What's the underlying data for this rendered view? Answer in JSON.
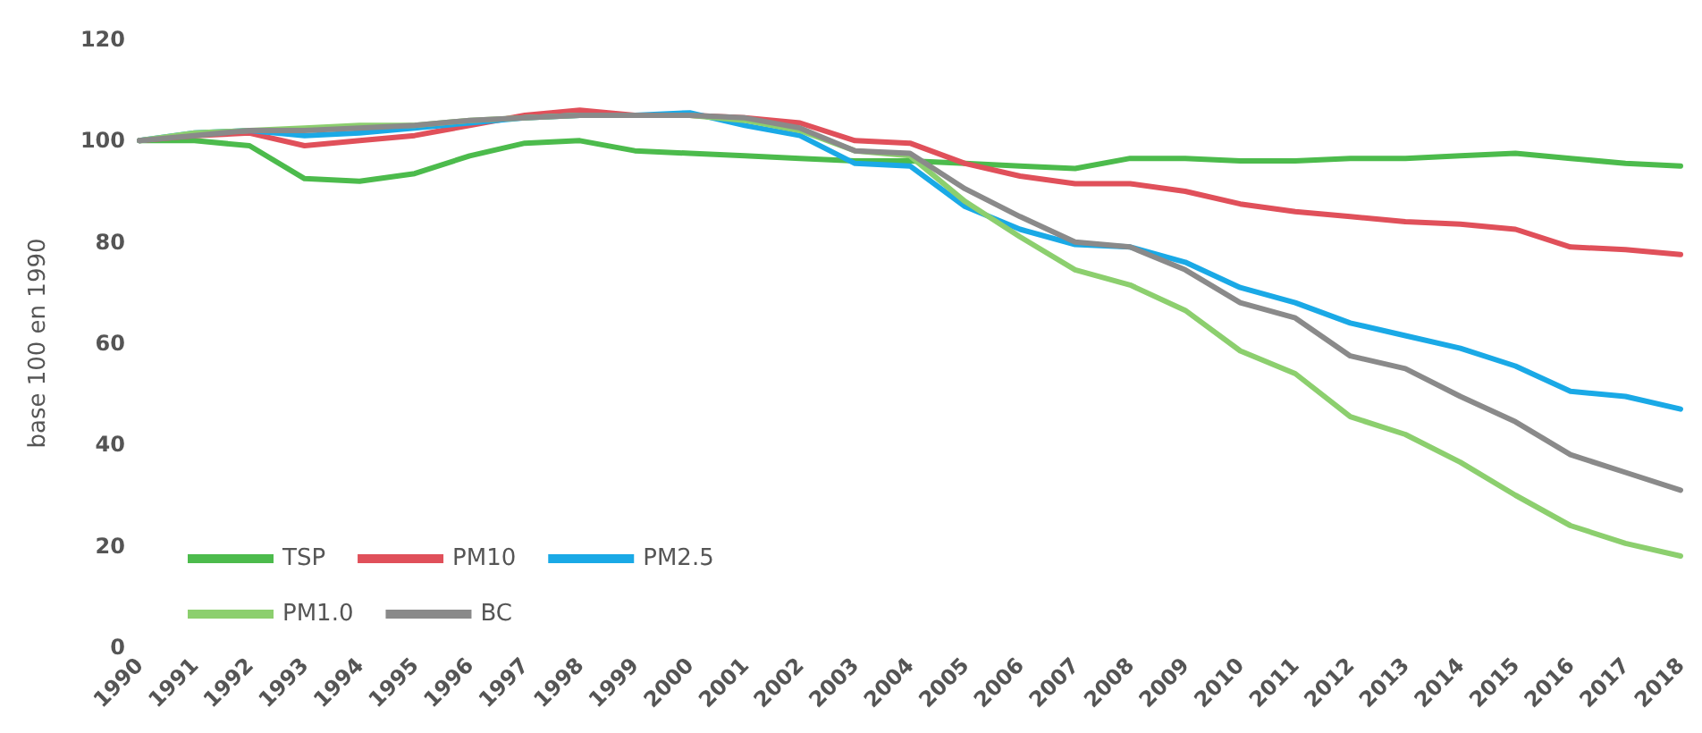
{
  "chart_data": {
    "type": "line",
    "ylabel": "base 100 en 1990",
    "categories": [
      "1990",
      "1991",
      "1992",
      "1993",
      "1994",
      "1995",
      "1996",
      "1997",
      "1998",
      "1999",
      "2000",
      "2001",
      "2002",
      "2003",
      "2004",
      "2005",
      "2006",
      "2007",
      "2008",
      "2009",
      "2010",
      "2011",
      "2012",
      "2013",
      "2014",
      "2015",
      "2016",
      "2017",
      "2018"
    ],
    "series": [
      {
        "name": "TSP",
        "color": "#4cbb4c",
        "values": [
          100,
          100,
          99,
          92.5,
          92,
          93.5,
          97,
          99.5,
          100,
          98,
          97.5,
          97,
          96.5,
          96,
          96,
          95.5,
          95,
          94.5,
          96.5,
          96.5,
          96,
          96,
          96.5,
          96.5,
          97,
          97.5,
          96.5,
          95.5,
          95
        ]
      },
      {
        "name": "PM10",
        "color": "#e0505a",
        "values": [
          100,
          101,
          101.5,
          99,
          100,
          101,
          103,
          105,
          106,
          105,
          105,
          104.5,
          103.5,
          100,
          99.5,
          95.5,
          93,
          91.5,
          91.5,
          90,
          87.5,
          86,
          85,
          84,
          83.5,
          82.5,
          79,
          78.5,
          77.5
        ]
      },
      {
        "name": "PM2.5",
        "color": "#1aa9e6",
        "values": [
          100,
          101.5,
          102,
          101,
          101.5,
          102.5,
          103.5,
          104.5,
          105,
          105,
          105.5,
          103,
          101,
          95.5,
          95,
          87,
          82.5,
          79.5,
          79,
          76,
          71,
          68,
          64,
          61.5,
          59,
          55.5,
          50.5,
          49.5,
          47
        ]
      },
      {
        "name": "PM1.0",
        "color": "#8ccf6e",
        "values": [
          100,
          101.5,
          102,
          102.5,
          103,
          103,
          104,
          104.5,
          105,
          105,
          105,
          104,
          102,
          98,
          97,
          88,
          81,
          74.5,
          71.5,
          66.5,
          58.5,
          54,
          45.5,
          42,
          36.5,
          30,
          24,
          20.5,
          18
        ]
      },
      {
        "name": "BC",
        "color": "#8a8a8a",
        "values": [
          100,
          101,
          102,
          102,
          102.5,
          103,
          104,
          104.5,
          105,
          105,
          105,
          104.5,
          102.5,
          98,
          97.5,
          90.5,
          85,
          80,
          79,
          74.5,
          68,
          65,
          57.5,
          55,
          49.5,
          44.5,
          38,
          34.5,
          31
        ]
      }
    ],
    "ylim": [
      0,
      120
    ],
    "yticks": [
      0,
      20,
      40,
      60,
      80,
      100,
      120
    ],
    "grid": false,
    "legend": "bottom left",
    "marker": "none",
    "line_style": "solid"
  }
}
